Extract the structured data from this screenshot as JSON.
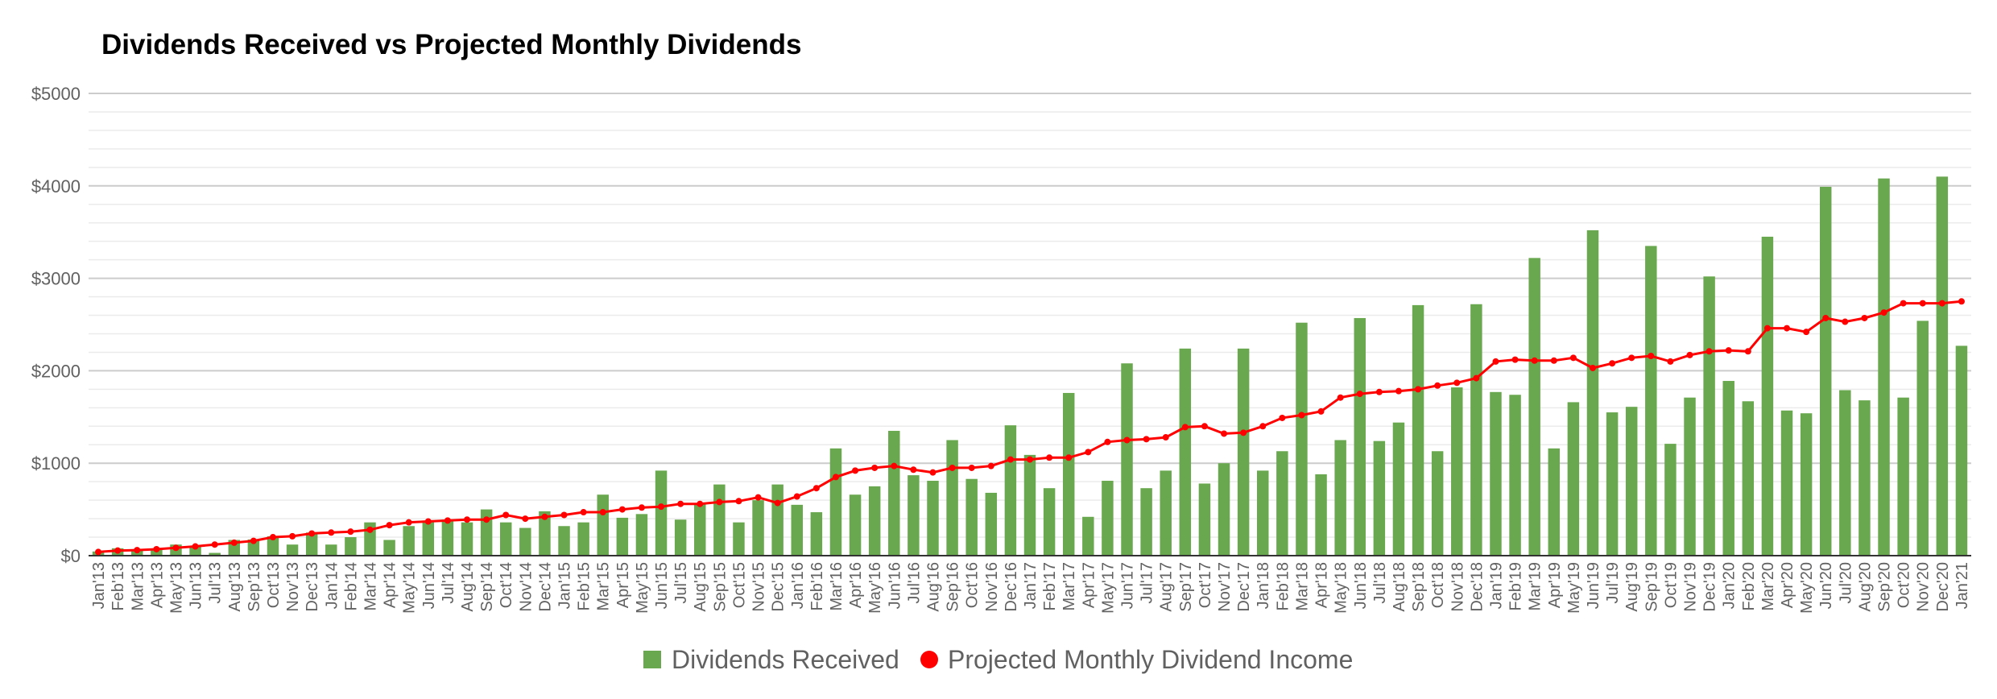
{
  "chart_data": {
    "type": "bar",
    "title": "Dividends Received vs Projected Monthly Dividends",
    "xlabel": "",
    "ylabel": "",
    "ylim": [
      0,
      5000
    ],
    "y_ticks": [
      "$0",
      "$1000",
      "$2000",
      "$3000",
      "$4000",
      "$5000"
    ],
    "y_tick_values": [
      0,
      1000,
      2000,
      3000,
      4000,
      5000
    ],
    "grid": true,
    "legend_position": "bottom",
    "categories": [
      "Jan'13",
      "Feb'13",
      "Mar'13",
      "Apr'13",
      "May'13",
      "Jun'13",
      "Jul'13",
      "Aug'13",
      "Sep'13",
      "Oct'13",
      "Nov'13",
      "Dec'13",
      "Jan'14",
      "Feb'14",
      "Mar'14",
      "Apr'14",
      "May'14",
      "Jun'14",
      "Jul'14",
      "Aug'14",
      "Sep'14",
      "Oct'14",
      "Nov'14",
      "Dec'14",
      "Jan'15",
      "Feb'15",
      "Mar'15",
      "Apr'15",
      "May'15",
      "Jun'15",
      "Jul'15",
      "Aug'15",
      "Sep'15",
      "Oct'15",
      "Nov'15",
      "Dec'15",
      "Jan'16",
      "Feb'16",
      "Mar'16",
      "Apr'16",
      "May'16",
      "Jun'16",
      "Jul'16",
      "Aug'16",
      "Sep'16",
      "Oct'16",
      "Nov'16",
      "Dec'16",
      "Jan'17",
      "Feb'17",
      "Mar'17",
      "Apr'17",
      "May'17",
      "Jun'17",
      "Jul'17",
      "Aug'17",
      "Sep'17",
      "Oct'17",
      "Nov'17",
      "Dec'17",
      "Jan'18",
      "Feb'18",
      "Mar'18",
      "Apr'18",
      "May'18",
      "Jun'18",
      "Jul'18",
      "Aug'18",
      "Sep'18",
      "Oct'18",
      "Nov'18",
      "Dec'18",
      "Jan'19",
      "Feb'19",
      "Mar'19",
      "Apr'19",
      "May'19",
      "Jun'19",
      "Jul'19",
      "Aug'19",
      "Sep'19",
      "Oct'19",
      "Nov'19",
      "Dec'19",
      "Jan'20",
      "Feb'20",
      "Mar'20",
      "Apr'20",
      "May'20",
      "Jun'20",
      "Jul'20",
      "Aug'20",
      "Sep'20",
      "Oct'20",
      "Nov'20",
      "Dec'20",
      "Jan'21"
    ],
    "series": [
      {
        "name": "Dividends Received",
        "type": "bar",
        "color": "#6aa84f",
        "values": [
          45,
          80,
          70,
          75,
          120,
          100,
          30,
          170,
          175,
          210,
          120,
          250,
          120,
          200,
          360,
          170,
          320,
          380,
          390,
          360,
          500,
          360,
          300,
          480,
          320,
          360,
          660,
          410,
          450,
          920,
          390,
          560,
          770,
          360,
          600,
          770,
          550,
          470,
          1160,
          660,
          750,
          1350,
          870,
          810,
          1250,
          830,
          680,
          1410,
          1090,
          730,
          1760,
          420,
          810,
          2080,
          730,
          920,
          2240,
          780,
          1000,
          2240,
          920,
          1130,
          2520,
          880,
          1250,
          2570,
          1240,
          1440,
          2710,
          1130,
          1820,
          2720,
          1770,
          1740,
          3220,
          1160,
          1660,
          3520,
          1550,
          1610,
          3350,
          1210,
          1710,
          3020,
          1890,
          1670,
          3450,
          1570,
          1540,
          3990,
          1790,
          1680,
          4080,
          1710,
          2540,
          4100,
          2270
        ]
      },
      {
        "name": "Projected Monthly Dividend Income",
        "type": "line",
        "color": "#ff0000",
        "values": [
          40,
          55,
          60,
          70,
          85,
          100,
          120,
          140,
          160,
          200,
          210,
          240,
          250,
          260,
          280,
          330,
          360,
          370,
          380,
          390,
          390,
          440,
          400,
          420,
          440,
          470,
          470,
          500,
          520,
          530,
          560,
          560,
          580,
          590,
          630,
          570,
          640,
          730,
          850,
          920,
          950,
          970,
          930,
          900,
          950,
          950,
          970,
          1040,
          1040,
          1060,
          1060,
          1120,
          1230,
          1250,
          1260,
          1280,
          1390,
          1400,
          1320,
          1330,
          1400,
          1490,
          1520,
          1560,
          1710,
          1750,
          1770,
          1780,
          1800,
          1840,
          1870,
          1920,
          2100,
          2120,
          2110,
          2110,
          2140,
          2030,
          2080,
          2140,
          2160,
          2100,
          2170,
          2210,
          2220,
          2210,
          2460,
          2460,
          2420,
          2570,
          2530,
          2570,
          2630,
          2730,
          2730,
          2730,
          2750
        ]
      }
    ]
  }
}
